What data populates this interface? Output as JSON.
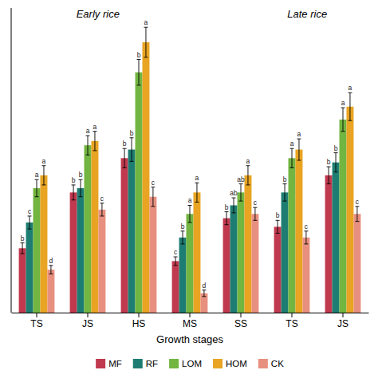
{
  "chart_data": {
    "type": "bar",
    "xlabel": "Growth stages",
    "categories": [
      "TS",
      "JS",
      "HS",
      "MS",
      "SS",
      "TS",
      "JS"
    ],
    "series": [
      {
        "name": "MF",
        "color": "#c0394e",
        "values": [
          0.3,
          0.56,
          0.72,
          0.24,
          0.44,
          0.4,
          0.64
        ],
        "errors": [
          0.025,
          0.035,
          0.045,
          0.02,
          0.03,
          0.03,
          0.04
        ],
        "sig_labels": [
          "b",
          "b",
          "b",
          "c",
          "b",
          "b",
          "b"
        ]
      },
      {
        "name": "RF",
        "color": "#1e7d72",
        "values": [
          0.42,
          0.58,
          0.76,
          0.35,
          0.5,
          0.56,
          0.7
        ],
        "errors": [
          0.03,
          0.04,
          0.055,
          0.03,
          0.035,
          0.04,
          0.045
        ],
        "sig_labels": [
          "c",
          "b",
          "b",
          "b",
          "ab",
          "b",
          "b"
        ]
      },
      {
        "name": "LOM",
        "color": "#72b540",
        "values": [
          0.58,
          0.78,
          1.12,
          0.46,
          0.56,
          0.72,
          0.9
        ],
        "errors": [
          0.04,
          0.045,
          0.06,
          0.04,
          0.04,
          0.045,
          0.055
        ],
        "sig_labels": [
          "a",
          "a",
          "b",
          "a",
          "ab",
          "a",
          "a"
        ]
      },
      {
        "name": "HOM",
        "color": "#e8a422",
        "values": [
          0.64,
          0.8,
          1.26,
          0.56,
          0.64,
          0.76,
          0.96
        ],
        "errors": [
          0.045,
          0.045,
          0.07,
          0.045,
          0.045,
          0.05,
          0.065
        ],
        "sig_labels": [
          "a",
          "a",
          "a",
          "a",
          "a",
          "a",
          "a"
        ]
      },
      {
        "name": "CK",
        "color": "#e89080",
        "values": [
          0.2,
          0.48,
          0.54,
          0.09,
          0.46,
          0.35,
          0.46
        ],
        "errors": [
          0.02,
          0.03,
          0.045,
          0.015,
          0.03,
          0.03,
          0.035
        ],
        "sig_labels": [
          "d",
          "c",
          "c",
          "d",
          "c",
          "c",
          "c"
        ]
      }
    ],
    "annotations": [
      {
        "text": "Early rice",
        "x": 1.2
      },
      {
        "text": "Late rice",
        "x": 5.3
      }
    ],
    "ylim": [
      0,
      1.42
    ],
    "grid": false,
    "legend": "bottom",
    "tick_labels": "x"
  }
}
